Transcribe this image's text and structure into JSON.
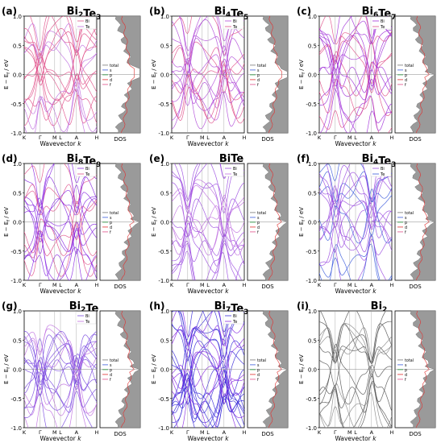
{
  "chart_data": [
    {
      "type": "line",
      "letter": "(a)",
      "title": "Bi",
      "sub1": "2",
      "mid": "Te",
      "sub2": "3",
      "bands_color": "#e0508a",
      "bands_color2": "#c070e0",
      "legend_bands": [
        "Bi",
        "Te"
      ],
      "dos_colors": [
        "#3b5bdb",
        "#2f9e44",
        "#e03131",
        "#e0508a"
      ],
      "gap": 0.08
    },
    {
      "type": "line",
      "letter": "(b)",
      "title": "Bi",
      "sub1": "4",
      "mid": "Te",
      "sub2": "5",
      "bands_color": "#b04ad8",
      "bands_color2": "#e0508a",
      "legend_bands": [
        "Bi",
        "Te"
      ],
      "dos_colors": [
        "#3b5bdb",
        "#2f9e44",
        "#e03131",
        "#e0508a"
      ],
      "gap": 0.04
    },
    {
      "type": "line",
      "letter": "(c)",
      "title": "Bi",
      "sub1": "6",
      "mid": "Te",
      "sub2": "7",
      "bands_color": "#a030d8",
      "bands_color2": "#e0508a",
      "legend_bands": [
        "Bi",
        "Te"
      ],
      "dos_colors": [
        "#3b5bdb",
        "#2f9e44",
        "#e03131",
        "#e0508a"
      ],
      "gap": 0.02
    },
    {
      "type": "line",
      "letter": "(d)",
      "title": "Bi",
      "sub1": "8",
      "mid": "Te",
      "sub2": "9",
      "bands_color": "#8a2be2",
      "bands_color2": "#e0508a",
      "legend_bands": [
        "Bi",
        "Te"
      ],
      "dos_colors": [
        "#3b5bdb",
        "#2f9e44",
        "#e03131",
        "#e0508a"
      ],
      "gap": 0.0
    },
    {
      "type": "line",
      "letter": "(e)",
      "title": "BiTe",
      "sub1": "",
      "mid": "",
      "sub2": "",
      "bands_color": "#9b4de0",
      "bands_color2": "#c070e0",
      "legend_bands": [
        "Bi",
        "Te"
      ],
      "dos_colors": [
        "#3b5bdb",
        "#2f9e44",
        "#e03131",
        "#e0508a"
      ],
      "gap": 0.0
    },
    {
      "type": "line",
      "letter": "(f)",
      "title": "Bi",
      "sub1": "4",
      "mid": "Te",
      "sub2": "3",
      "bands_color": "#9b4de0",
      "bands_color2": "#3b5bdb",
      "legend_bands": [
        "Bi",
        "Te"
      ],
      "dos_colors": [
        "#3b5bdb",
        "#2f9e44",
        "#e03131",
        "#e0508a"
      ],
      "gap": 0.0
    },
    {
      "type": "line",
      "letter": "(g)",
      "title": "Bi",
      "sub1": "2",
      "mid": "Te",
      "sub2": "",
      "bands_color": "#7b4be0",
      "bands_color2": "#c070e0",
      "legend_bands": [
        "Bi",
        "Te"
      ],
      "dos_colors": [
        "#3b5bdb",
        "#2f9e44",
        "#e03131",
        "#e0508a"
      ],
      "gap": 0.0
    },
    {
      "type": "line",
      "letter": "(h)",
      "title": "Bi",
      "sub1": "7",
      "mid": "Te",
      "sub2": "3",
      "bands_color": "#3a2bd8",
      "bands_color2": "#8a2be2",
      "legend_bands": [
        "Bi",
        "Te"
      ],
      "dos_colors": [
        "#3b5bdb",
        "#2f9e44",
        "#e03131",
        "#e0508a"
      ],
      "gap": 0.0
    },
    {
      "type": "line",
      "letter": "(i)",
      "title": "Bi",
      "sub1": "2",
      "mid": "",
      "sub2": "",
      "bands_color": "#555555",
      "bands_color2": "#888888",
      "legend_bands": [],
      "dos_colors": [
        "#3b5bdb",
        "#2f9e44",
        "#e03131",
        "#e0508a"
      ],
      "gap": 0.0
    }
  ],
  "axes": {
    "ylabel": "E − E",
    "ylabel_sub": "f",
    "ylabel_unit": " / eV",
    "xlabel": "Wavevector ",
    "xlabel_var": "k",
    "dos_label": "DOS",
    "yticks": [
      "1.0",
      "0.5",
      "0.0",
      "-0.5",
      "-1.0"
    ],
    "ytick_values": [
      1.0,
      0.5,
      0.0,
      -0.5,
      -1.0
    ],
    "ylim": [
      -1.0,
      1.0
    ],
    "kpath": [
      "K",
      "Γ",
      "M",
      "L",
      "A",
      "H"
    ],
    "dos_legend": [
      "total",
      "s",
      "p",
      "d",
      "f"
    ]
  }
}
